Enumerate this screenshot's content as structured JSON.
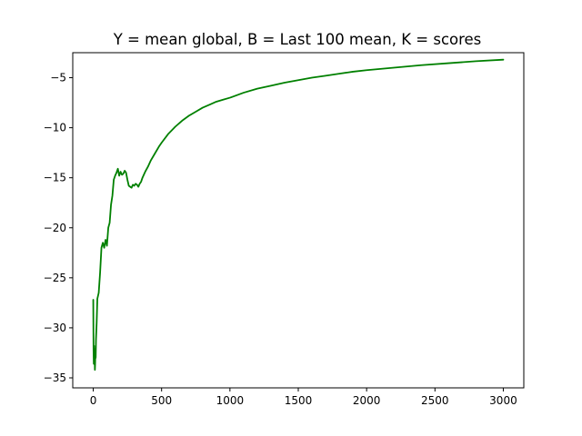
{
  "chart_data": {
    "type": "line",
    "title": "Y = mean global, B = Last 100 mean, K = scores",
    "xlabel": "",
    "ylabel": "",
    "xlim": [
      -150,
      3150
    ],
    "ylim": [
      -36,
      -2.5
    ],
    "grid": false,
    "legend": "none",
    "x_ticks": [
      0,
      500,
      1000,
      1500,
      2000,
      2500,
      3000
    ],
    "x_tick_labels": [
      "0",
      "500",
      "1000",
      "1500",
      "2000",
      "2500",
      "3000"
    ],
    "y_ticks": [
      -35,
      -30,
      -25,
      -20,
      -15,
      -10,
      -5
    ],
    "y_tick_labels": [
      "−35",
      "−30",
      "−25",
      "−20",
      "−15",
      "−10",
      "−5"
    ],
    "series": [
      {
        "color": "#008000",
        "x": [
          0,
          2,
          4,
          6,
          8,
          10,
          12,
          14,
          16,
          18,
          20,
          25,
          30,
          40,
          50,
          60,
          70,
          80,
          90,
          100,
          110,
          120,
          130,
          140,
          150,
          160,
          170,
          180,
          190,
          200,
          210,
          220,
          230,
          240,
          250,
          260,
          270,
          280,
          290,
          300,
          310,
          320,
          330,
          340,
          350,
          360,
          380,
          400,
          420,
          450,
          480,
          500,
          550,
          600,
          650,
          700,
          750,
          800,
          850,
          900,
          950,
          1000,
          1100,
          1200,
          1300,
          1400,
          1500,
          1600,
          1700,
          1800,
          1900,
          2000,
          2200,
          2400,
          2600,
          2800,
          3000
        ],
        "y": [
          -27.2,
          -32.2,
          -33.6,
          -31.8,
          -33.5,
          -32.6,
          -34.2,
          -33.5,
          -32.1,
          -33.0,
          -31.2,
          -29.5,
          -27.1,
          -26.5,
          -24.5,
          -22.0,
          -21.5,
          -22.0,
          -21.2,
          -21.8,
          -20.0,
          -19.5,
          -17.7,
          -16.8,
          -15.2,
          -14.8,
          -14.5,
          -14.1,
          -14.8,
          -14.4,
          -14.7,
          -14.6,
          -14.3,
          -14.5,
          -15.2,
          -15.8,
          -15.9,
          -16.0,
          -15.7,
          -15.8,
          -15.6,
          -15.7,
          -15.9,
          -15.6,
          -15.4,
          -15.0,
          -14.4,
          -13.9,
          -13.3,
          -12.6,
          -11.9,
          -11.5,
          -10.6,
          -9.9,
          -9.3,
          -8.8,
          -8.4,
          -8.0,
          -7.7,
          -7.4,
          -7.2,
          -7.0,
          -6.5,
          -6.1,
          -5.8,
          -5.5,
          -5.25,
          -5.0,
          -4.8,
          -4.6,
          -4.4,
          -4.25,
          -4.0,
          -3.75,
          -3.55,
          -3.35,
          -3.2
        ]
      }
    ]
  }
}
